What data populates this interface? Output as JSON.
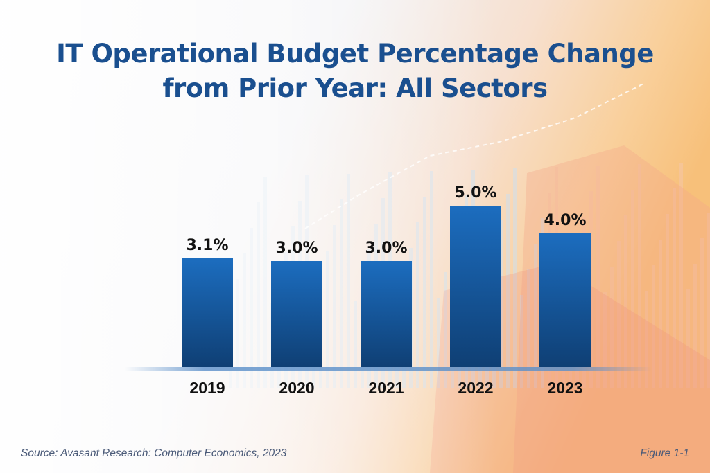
{
  "chart_data": {
    "type": "bar",
    "title": "IT Operational Budget Percentage Change from Prior Year: All Sectors",
    "title_lines": [
      "IT Operational Budget Percentage Change",
      "from Prior Year: All Sectors"
    ],
    "categories": [
      "2019",
      "2020",
      "2021",
      "2022",
      "2023"
    ],
    "values": [
      3.1,
      3.0,
      3.0,
      5.0,
      4.0
    ],
    "data_labels": [
      "3.1%",
      "3.0%",
      "3.0%",
      "5.0%",
      "4.0%"
    ],
    "unit": "%",
    "xlabel": "",
    "ylabel": "",
    "grid": false,
    "legend": "none",
    "bar_color_top": "#1c6dbf",
    "bar_color_bottom": "#0f3f74"
  },
  "footer": {
    "source": "Source: Avasant Research: Computer Economics, 2023",
    "figure": "Figure 1-1"
  },
  "colors": {
    "title": "#1a4f8f",
    "label": "#111111"
  }
}
